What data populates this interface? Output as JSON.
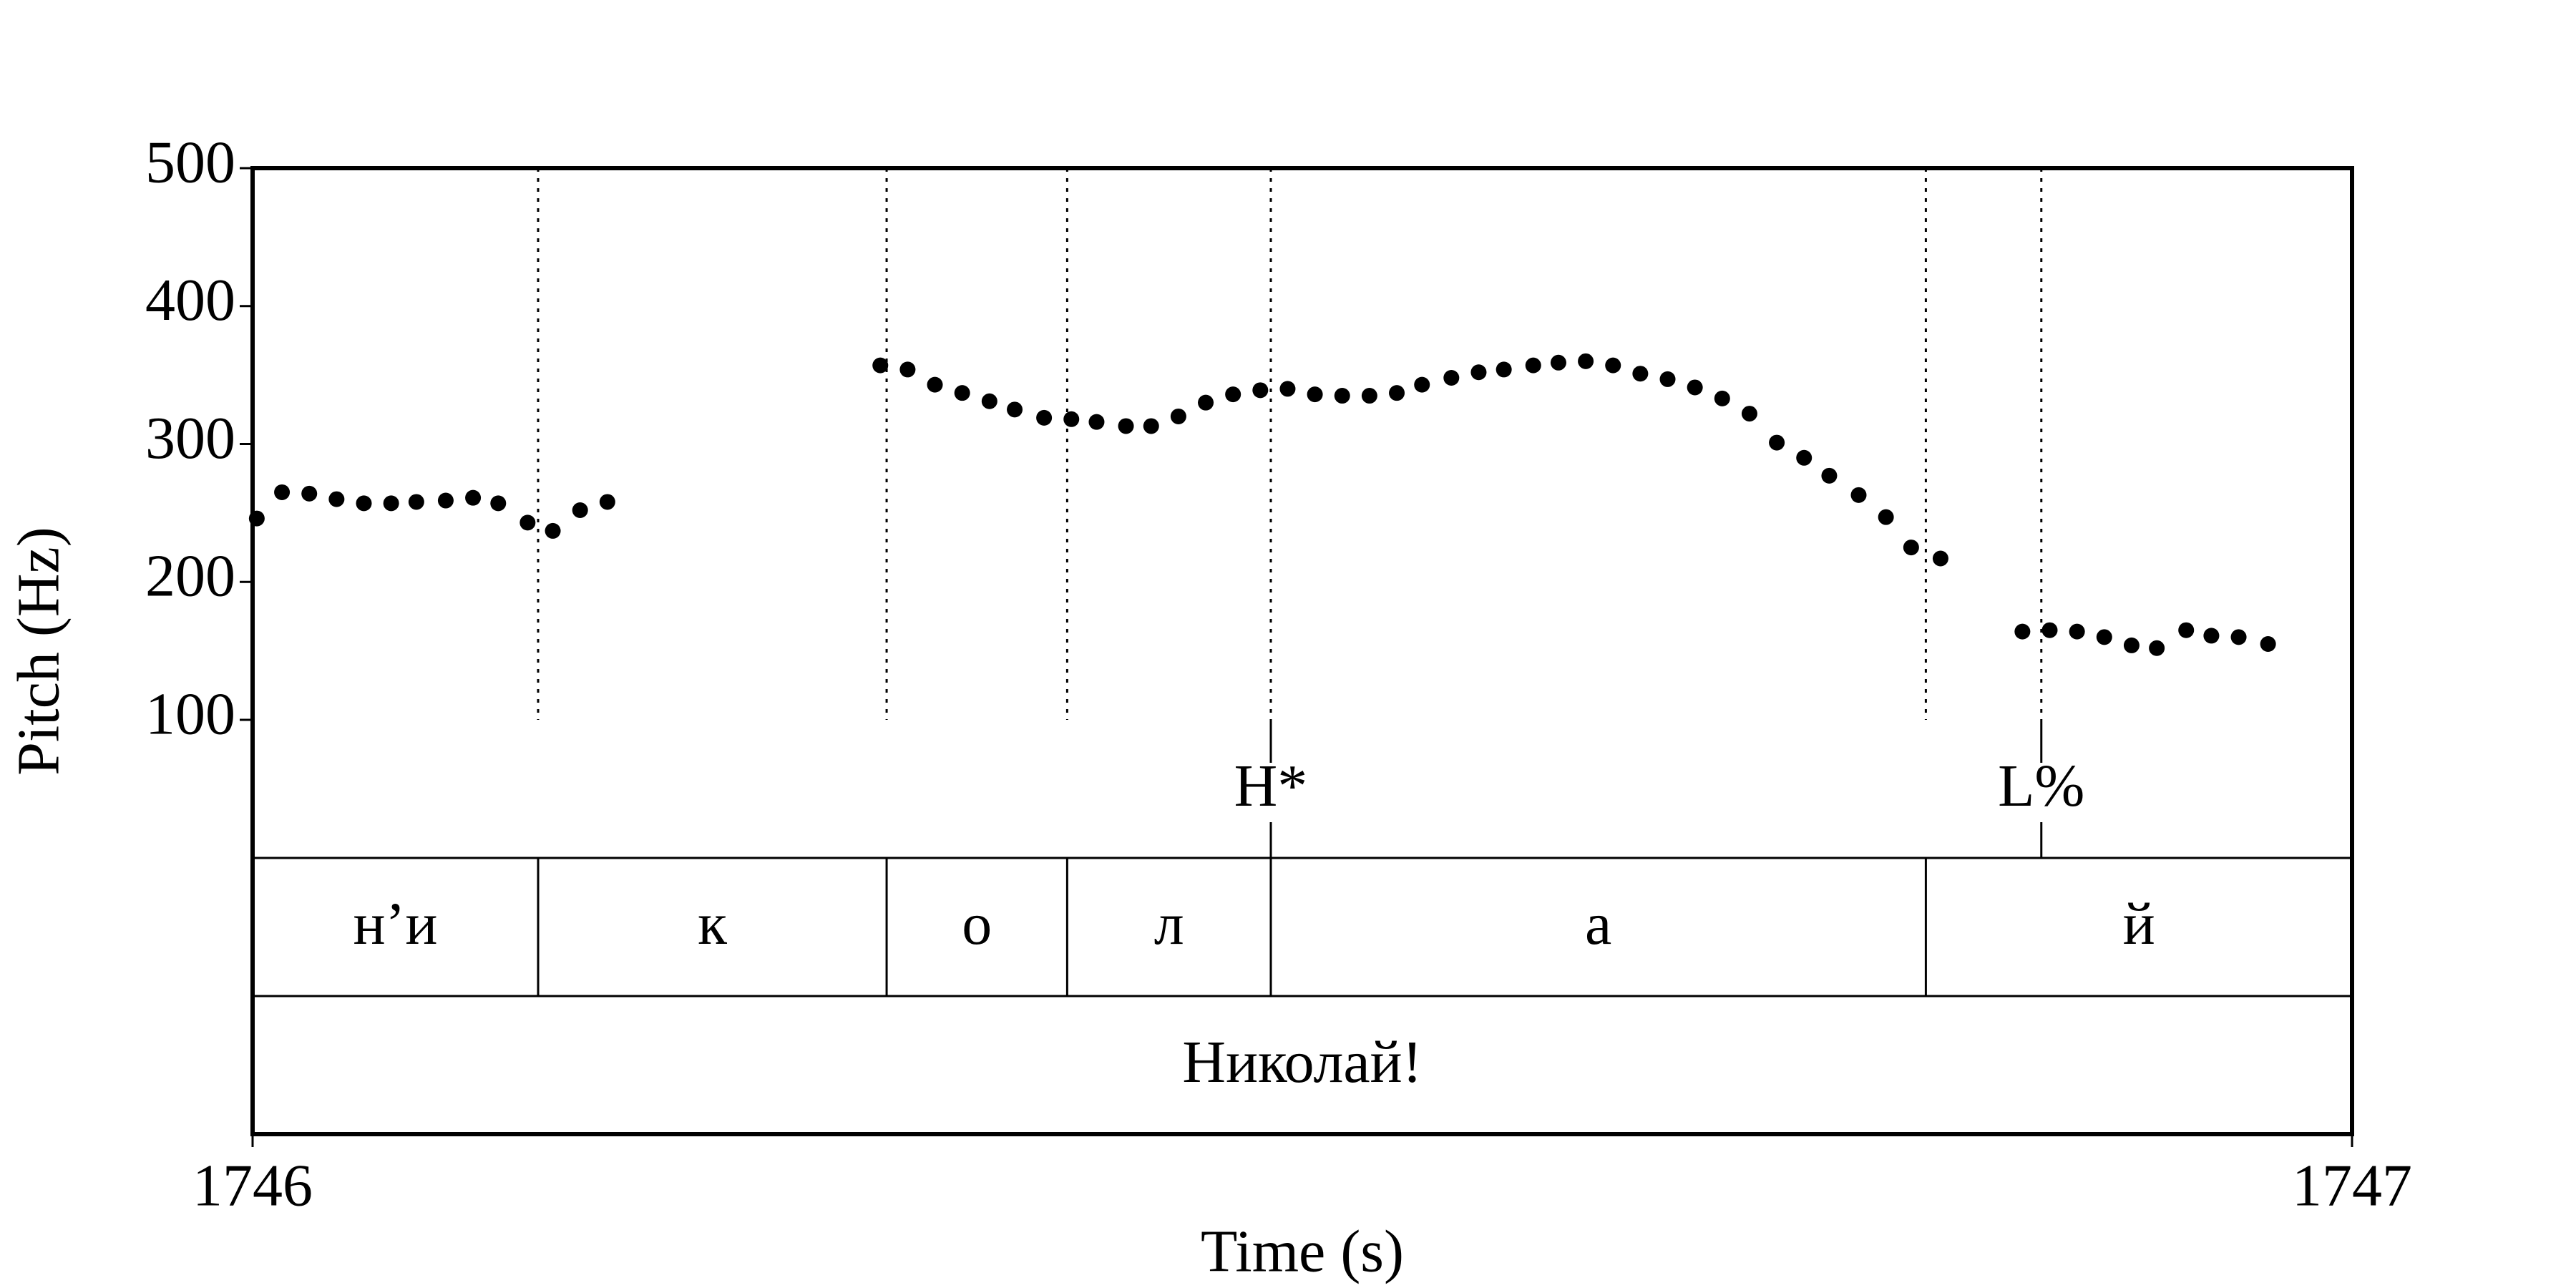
{
  "chart_data": {
    "type": "scatter",
    "x_label": "Time (s)",
    "y_label": "Pitch (Hz)",
    "xlim": [
      1746,
      1747
    ],
    "xticks": [
      1746,
      1747
    ],
    "ylim": [
      100,
      500
    ],
    "yticks": [
      100,
      200,
      300,
      400,
      500
    ],
    "color": "#000000",
    "x": [
      1746.002,
      1746.014,
      1746.027,
      1746.04,
      1746.053,
      1746.066,
      1746.078,
      1746.092,
      1746.105,
      1746.117,
      1746.131,
      1746.143,
      1746.156,
      1746.169,
      1746.299,
      1746.312,
      1746.325,
      1746.338,
      1746.351,
      1746.363,
      1746.377,
      1746.39,
      1746.402,
      1746.416,
      1746.428,
      1746.441,
      1746.454,
      1746.467,
      1746.48,
      1746.493,
      1746.506,
      1746.519,
      1746.532,
      1746.545,
      1746.557,
      1746.571,
      1746.584,
      1746.596,
      1746.61,
      1746.622,
      1746.635,
      1746.648,
      1746.661,
      1746.674,
      1746.687,
      1746.7,
      1746.713,
      1746.726,
      1746.739,
      1746.751,
      1746.765,
      1746.778,
      1746.79,
      1746.804,
      1746.843,
      1746.856,
      1746.869,
      1746.882,
      1746.895,
      1746.907,
      1746.921,
      1746.933,
      1746.946,
      1746.96
    ],
    "values": [
      246,
      265,
      264,
      260,
      257,
      257,
      258,
      259,
      261,
      257,
      243,
      237,
      252,
      258,
      357,
      354,
      343,
      337,
      331,
      325,
      319,
      318,
      316,
      313,
      313,
      320,
      330,
      336,
      339,
      340,
      336,
      335,
      335,
      337,
      343,
      348,
      352,
      354,
      357,
      359,
      360,
      357,
      351,
      347,
      341,
      333,
      322,
      301,
      290,
      277,
      263,
      247,
      225,
      217,
      164,
      165,
      164,
      160,
      154,
      152,
      165,
      161,
      160,
      155
    ],
    "tiers": [
      {
        "kind": "point",
        "times": [
          1746.485,
          1746.852
        ],
        "labels": [
          "H*",
          "L%"
        ]
      },
      {
        "kind": "interval",
        "boundaries": [
          1746,
          1746.136,
          1746.302,
          1746.388,
          1746.485,
          1746.797,
          1747
        ],
        "labels": [
          "н’и",
          "к",
          "о",
          "л",
          "а",
          "й"
        ]
      },
      {
        "kind": "interval",
        "boundaries": [
          1746,
          1747
        ],
        "labels": [
          "Николай!"
        ]
      }
    ]
  }
}
